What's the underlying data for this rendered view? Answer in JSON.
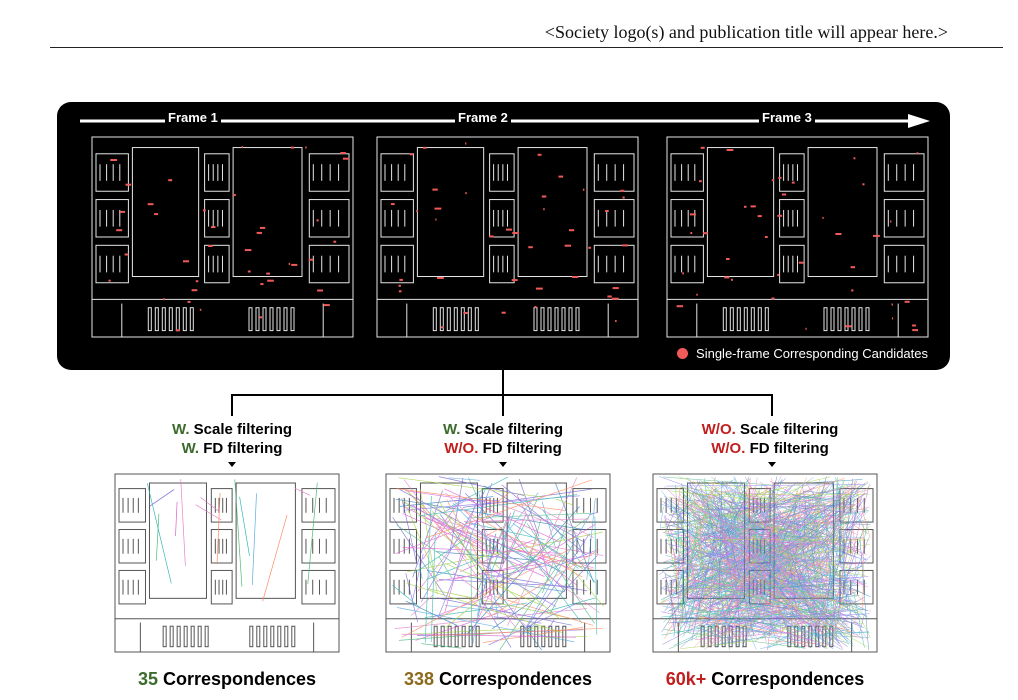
{
  "header": {
    "text": "<Society logo(s) and publication title will appear here.>"
  },
  "top_panel": {
    "frames": [
      "Frame 1",
      "Frame 2",
      "Frame 3"
    ],
    "legend": "Single-frame Corresponding Candidates",
    "legend_color": "#f25a5a"
  },
  "settings": [
    {
      "scale_prefix": "W.",
      "scale_text": "Scale filtering",
      "fd_prefix": "W.",
      "fd_text": "FD filtering",
      "count_value": "35",
      "count_text": "Correspondences"
    },
    {
      "scale_prefix": "W.",
      "scale_text": "Scale filtering",
      "fd_prefix": "W/O.",
      "fd_text": "FD filtering",
      "count_value": "338",
      "count_text": "Correspondences"
    },
    {
      "scale_prefix": "W/O.",
      "scale_text": "Scale filtering",
      "fd_prefix": "W/O.",
      "fd_text": "FD filtering",
      "count_value": "60k+",
      "count_text": "Correspondences"
    }
  ],
  "colors": {
    "green": "#3c6b2c",
    "red": "#c21f1f",
    "olive": "#8b6a1c",
    "panel": "#000000",
    "candidate": "#f25a5a"
  }
}
